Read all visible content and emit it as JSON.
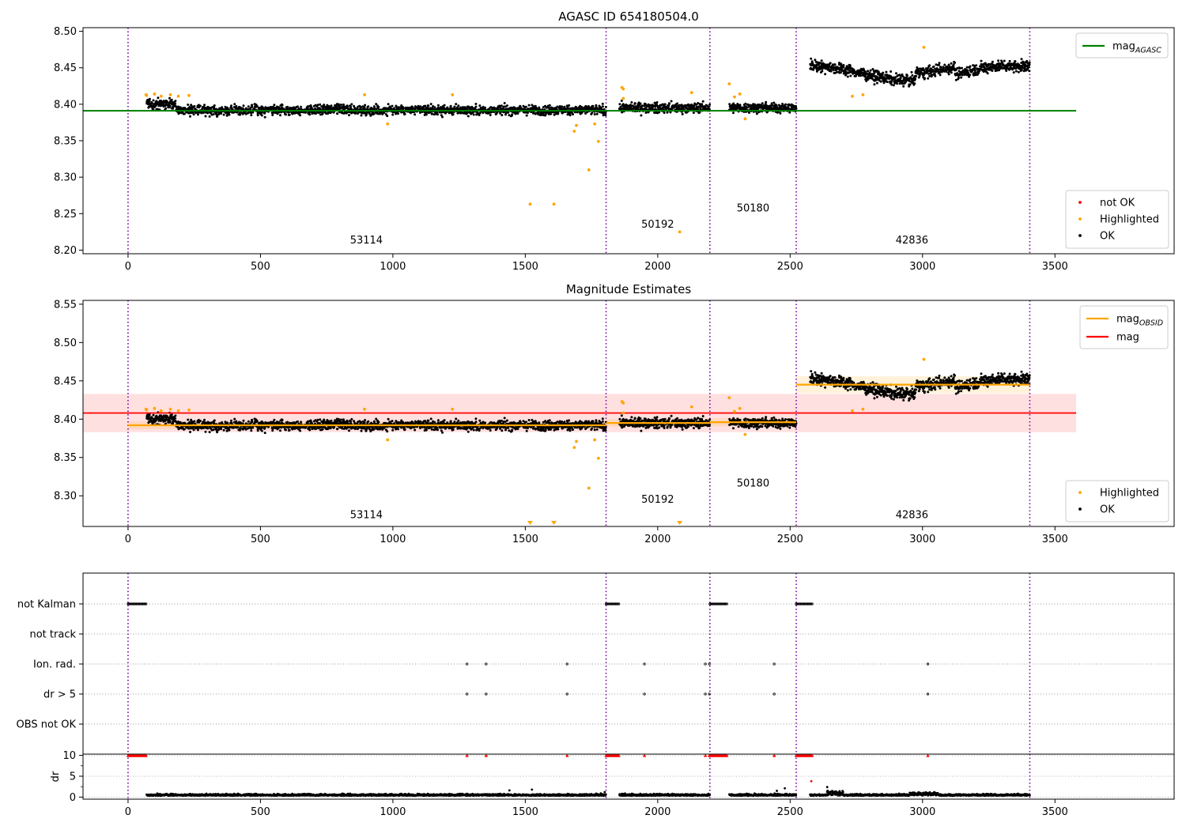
{
  "chart_data": [
    {
      "type": "scatter",
      "title": "AGASC ID 654180504.0",
      "xlim": [
        -170,
        3950
      ],
      "ylim": [
        8.195,
        8.505
      ],
      "xticks": [
        0,
        500,
        1000,
        1500,
        2000,
        2500,
        3000,
        3500
      ],
      "yticks": [
        8.2,
        8.25,
        8.3,
        8.35,
        8.4,
        8.45,
        8.5
      ],
      "legend_lines": [
        {
          "label": "mag",
          "sub": "AGASC",
          "color": "#008000"
        }
      ],
      "legend_points": [
        {
          "label": "not OK",
          "color": "#ff0000"
        },
        {
          "label": "Highlighted",
          "color": "#ffa500"
        },
        {
          "label": "OK",
          "color": "#000000"
        }
      ],
      "hlines": [
        {
          "y": 8.391,
          "x0": -170,
          "x1": 3580,
          "color": "#008000"
        }
      ],
      "obs_bounds": [
        0,
        1805,
        2197,
        2523,
        3405
      ],
      "obs_labels": [
        {
          "x": 900,
          "y": 8.209,
          "text": "53114"
        },
        {
          "x": 2000,
          "y": 8.231,
          "text": "50192"
        },
        {
          "x": 2360,
          "y": 8.253,
          "text": "50180"
        },
        {
          "x": 2960,
          "y": 8.209,
          "text": "42836"
        }
      ],
      "segments": [
        {
          "x0": 70,
          "x1": 1805,
          "y": 8.392,
          "noise": 0.006
        },
        {
          "x0": 1855,
          "x1": 2197,
          "y": 8.395,
          "noise": 0.006
        },
        {
          "x0": 2270,
          "x1": 2523,
          "y": 8.395,
          "noise": 0.006
        },
        {
          "x0": 2575,
          "x1": 3405,
          "y": 8.445,
          "noise": 0.007
        }
      ],
      "highlighted": [
        [
          68,
          8.413
        ],
        [
          70,
          8.412
        ],
        [
          100,
          8.414
        ],
        [
          125,
          8.411
        ],
        [
          160,
          8.413
        ],
        [
          190,
          8.411
        ],
        [
          230,
          8.412
        ],
        [
          893,
          8.413
        ],
        [
          980,
          8.373
        ],
        [
          1225,
          8.413
        ],
        [
          1518,
          8.263
        ],
        [
          1608,
          8.263
        ],
        [
          1685,
          8.363
        ],
        [
          1693,
          8.371
        ],
        [
          1740,
          8.31
        ],
        [
          1762,
          8.373
        ],
        [
          1776,
          8.349
        ],
        [
          1865,
          8.423
        ],
        [
          1870,
          8.421
        ],
        [
          1870,
          8.408
        ],
        [
          2083,
          8.225
        ],
        [
          2128,
          8.416
        ],
        [
          2270,
          8.428
        ],
        [
          2290,
          8.41
        ],
        [
          2310,
          8.414
        ],
        [
          2330,
          8.38
        ],
        [
          2735,
          8.411
        ],
        [
          2775,
          8.413
        ],
        [
          3005,
          8.478
        ]
      ]
    },
    {
      "type": "scatter",
      "title": "Magnitude Estimates",
      "xlim": [
        -170,
        3950
      ],
      "ylim": [
        8.26,
        8.555
      ],
      "xticks": [
        0,
        500,
        1000,
        1500,
        2000,
        2500,
        3000,
        3500
      ],
      "yticks": [
        8.3,
        8.35,
        8.4,
        8.45,
        8.5,
        8.55
      ],
      "legend_lines": [
        {
          "label": "mag",
          "sub": "OBSID",
          "color": "#ffa500"
        },
        {
          "label": "mag",
          "sub": "",
          "color": "#ff0000"
        }
      ],
      "legend_points": [
        {
          "label": "Highlighted",
          "color": "#ffa500"
        },
        {
          "label": "OK",
          "color": "#000000"
        }
      ],
      "band": {
        "y0": 8.383,
        "y1": 8.433,
        "x0": -170,
        "x1": 3580,
        "color": "#ff0000"
      },
      "hlines": [
        {
          "y": 8.408,
          "x0": -170,
          "x1": 3580,
          "color": "#ff0000"
        }
      ],
      "obsid_lines": [
        {
          "x0": 0,
          "x1": 1805,
          "y": 8.392,
          "lo": 8.387,
          "hi": 8.397
        },
        {
          "x0": 1805,
          "x1": 2197,
          "y": 8.395,
          "lo": 8.39,
          "hi": 8.4
        },
        {
          "x0": 2197,
          "x1": 2523,
          "y": 8.396,
          "lo": 8.391,
          "hi": 8.401
        },
        {
          "x0": 2523,
          "x1": 3405,
          "y": 8.445,
          "lo": 8.434,
          "hi": 8.456
        }
      ],
      "obs_bounds": [
        0,
        1805,
        2197,
        2523,
        3405
      ],
      "obs_labels": [
        {
          "x": 900,
          "y": 8.271,
          "text": "53114"
        },
        {
          "x": 2000,
          "y": 8.291,
          "text": "50192"
        },
        {
          "x": 2360,
          "y": 8.312,
          "text": "50180"
        },
        {
          "x": 2960,
          "y": 8.271,
          "text": "42836"
        }
      ],
      "segments": [
        {
          "x0": 70,
          "x1": 1805,
          "y": 8.392,
          "noise": 0.006
        },
        {
          "x0": 1855,
          "x1": 2197,
          "y": 8.395,
          "noise": 0.006
        },
        {
          "x0": 2270,
          "x1": 2523,
          "y": 8.395,
          "noise": 0.006
        },
        {
          "x0": 2575,
          "x1": 3405,
          "y": 8.445,
          "noise": 0.007
        }
      ],
      "highlighted": [
        [
          68,
          8.413
        ],
        [
          70,
          8.412
        ],
        [
          100,
          8.414
        ],
        [
          125,
          8.411
        ],
        [
          160,
          8.413
        ],
        [
          190,
          8.411
        ],
        [
          230,
          8.412
        ],
        [
          893,
          8.413
        ],
        [
          980,
          8.373
        ],
        [
          1225,
          8.413
        ],
        [
          1685,
          8.363
        ],
        [
          1693,
          8.371
        ],
        [
          1740,
          8.31
        ],
        [
          1762,
          8.373
        ],
        [
          1776,
          8.349
        ],
        [
          1865,
          8.423
        ],
        [
          1870,
          8.421
        ],
        [
          1870,
          8.408
        ],
        [
          2128,
          8.416
        ],
        [
          2270,
          8.428
        ],
        [
          2290,
          8.41
        ],
        [
          2310,
          8.414
        ],
        [
          2330,
          8.38
        ],
        [
          2735,
          8.411
        ],
        [
          2775,
          8.413
        ],
        [
          3005,
          8.478
        ]
      ],
      "out_of_range_markers": [
        1518,
        1608,
        2083
      ]
    },
    {
      "type": "scatter",
      "title": "",
      "xlim": [
        -170,
        3950
      ],
      "xticks": [
        0,
        500,
        1000,
        1500,
        2000,
        2500,
        3000,
        3500
      ],
      "flag_rows": [
        "not Kalman",
        "not track",
        "Ion. rad.",
        "dr > 5",
        "OBS not OK"
      ],
      "obs_bounds": [
        0,
        1805,
        2197,
        2523,
        3405
      ],
      "flags": {
        "not Kalman": [
          [
            0,
            68
          ],
          [
            1805,
            1855
          ],
          [
            2197,
            2262
          ],
          [
            2523,
            2585
          ]
        ],
        "Ion. rad.": [
          1280,
          1352,
          1658,
          1950,
          2180,
          2195,
          2440,
          3020
        ],
        "dr > 5": [
          1280,
          1352,
          1658,
          1950,
          2180,
          2195,
          2440,
          3020
        ]
      }
    },
    {
      "type": "scatter",
      "title": "",
      "ylabel": "dr",
      "xlim": [
        -170,
        3950
      ],
      "ylim": [
        -0.5,
        10.3
      ],
      "xticks": [
        0,
        500,
        1000,
        1500,
        2000,
        2500,
        3000,
        3500
      ],
      "yticks": [
        0,
        5,
        10
      ],
      "obs_bounds": [
        0,
        1805,
        2197,
        2523,
        3405
      ],
      "clipped_high": {
        "ranges": [
          [
            0,
            68
          ],
          [
            1805,
            1855
          ],
          [
            2197,
            2262
          ],
          [
            2523,
            2585
          ]
        ],
        "points": [
          1280,
          1352,
          1658,
          1950,
          2180,
          2195,
          2440,
          3020
        ]
      },
      "outliers": [
        [
          1440,
          1.6
        ],
        [
          1525,
          1.8
        ],
        [
          1800,
          1.2
        ],
        [
          2450,
          1.5
        ],
        [
          2480,
          2.1
        ],
        [
          2640,
          2.4
        ],
        [
          2580,
          3.8
        ]
      ]
    }
  ]
}
